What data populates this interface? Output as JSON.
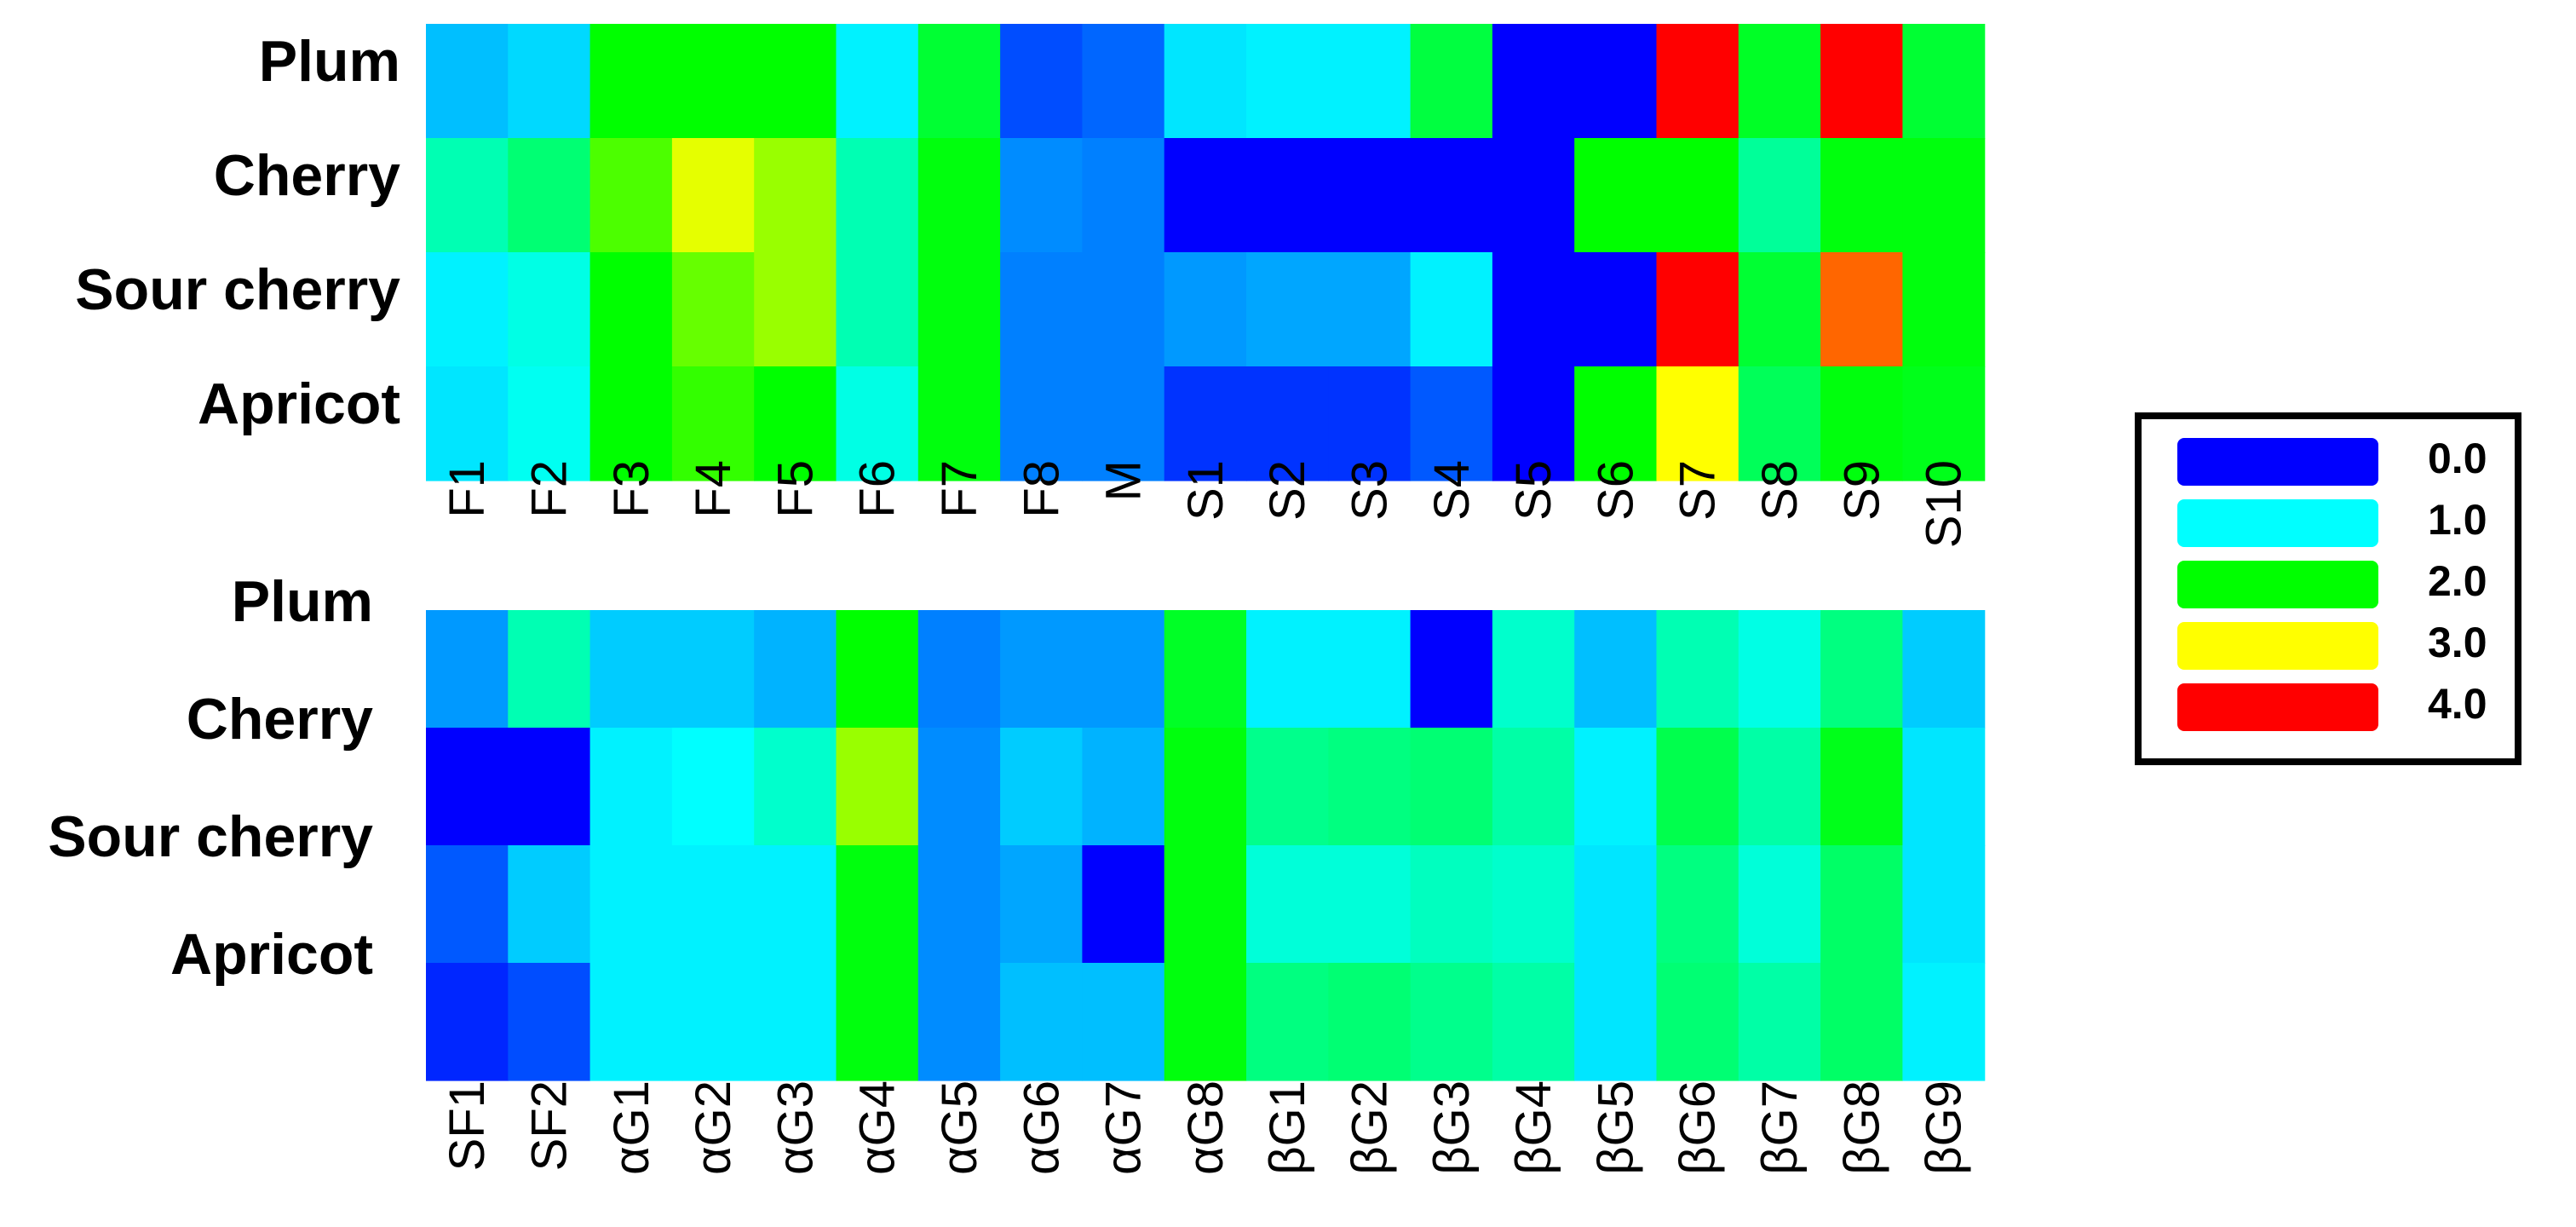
{
  "legend": {
    "items": [
      {
        "label": "0.0",
        "color": "#0000FF"
      },
      {
        "label": "1.0",
        "color": "#00FFFF"
      },
      {
        "label": "2.0",
        "color": "#00FF00"
      },
      {
        "label": "3.0",
        "color": "#FFFF00"
      },
      {
        "label": "4.0",
        "color": "#FF0000"
      }
    ]
  },
  "chart_data": [
    {
      "type": "heatmap",
      "rows": [
        "Plum",
        "Cherry",
        "Sour cherry",
        "Apricot"
      ],
      "columns": [
        "F1",
        "F2",
        "F3",
        "F4",
        "F5",
        "F6",
        "F7",
        "F8",
        "M",
        "S1",
        "S2",
        "S3",
        "S4",
        "S5",
        "S6",
        "S7",
        "S8",
        "S9",
        "S10"
      ],
      "values": [
        [
          0.75,
          0.85,
          2.0,
          2.0,
          2.0,
          0.95,
          1.8,
          0.3,
          0.4,
          0.9,
          0.95,
          0.95,
          1.75,
          0.0,
          0.0,
          4.0,
          1.85,
          4.0,
          1.8
        ],
        [
          1.3,
          1.55,
          2.3,
          2.9,
          2.6,
          1.3,
          1.95,
          0.55,
          0.5,
          0.0,
          0.0,
          0.0,
          0.0,
          0.0,
          2.0,
          2.0,
          1.4,
          1.95,
          1.95
        ],
        [
          0.95,
          1.1,
          2.0,
          2.4,
          2.6,
          1.3,
          1.95,
          0.5,
          0.5,
          0.6,
          0.65,
          0.65,
          0.95,
          0.0,
          0.0,
          4.0,
          1.8,
          3.6,
          1.95
        ],
        [
          0.9,
          1.05,
          2.0,
          2.2,
          2.0,
          1.1,
          1.95,
          0.5,
          0.5,
          0.2,
          0.2,
          0.2,
          0.35,
          0.0,
          2.0,
          3.0,
          1.65,
          1.95,
          1.9
        ]
      ],
      "scale": {
        "min": 0.0,
        "max": 4.0,
        "ticks": [
          0.0,
          1.0,
          2.0,
          3.0,
          4.0
        ]
      }
    },
    {
      "type": "heatmap",
      "rows": [
        "Plum",
        "Cherry",
        "Sour cherry",
        "Apricot"
      ],
      "columns": [
        "SF1",
        "SF2",
        "αG1",
        "αG2",
        "αG3",
        "αG4",
        "αG5",
        "αG6",
        "αG7",
        "αG8",
        "βG1",
        "βG2",
        "βG3",
        "βG4",
        "βG5",
        "βG6",
        "βG7",
        "βG8",
        "βG9"
      ],
      "values": [
        [
          0.6,
          1.3,
          0.8,
          0.8,
          0.7,
          2.0,
          0.5,
          0.6,
          0.6,
          1.85,
          0.95,
          0.95,
          0.0,
          1.2,
          0.75,
          1.3,
          1.1,
          1.5,
          0.8
        ],
        [
          0.0,
          0.0,
          0.95,
          1.0,
          1.2,
          2.6,
          0.55,
          0.8,
          0.7,
          1.95,
          1.45,
          1.5,
          1.55,
          1.35,
          0.95,
          1.7,
          1.35,
          1.9,
          0.9
        ],
        [
          0.35,
          0.8,
          0.95,
          0.95,
          0.95,
          1.95,
          0.55,
          0.65,
          0.0,
          1.95,
          1.15,
          1.15,
          1.25,
          1.2,
          0.9,
          1.5,
          1.15,
          1.6,
          0.9
        ],
        [
          0.15,
          0.3,
          0.95,
          0.95,
          0.95,
          1.95,
          0.55,
          0.75,
          0.75,
          1.95,
          1.5,
          1.55,
          1.45,
          1.35,
          0.9,
          1.55,
          1.35,
          1.6,
          0.95
        ]
      ],
      "scale": {
        "min": 0.0,
        "max": 4.0,
        "ticks": [
          0.0,
          1.0,
          2.0,
          3.0,
          4.0
        ]
      }
    }
  ]
}
